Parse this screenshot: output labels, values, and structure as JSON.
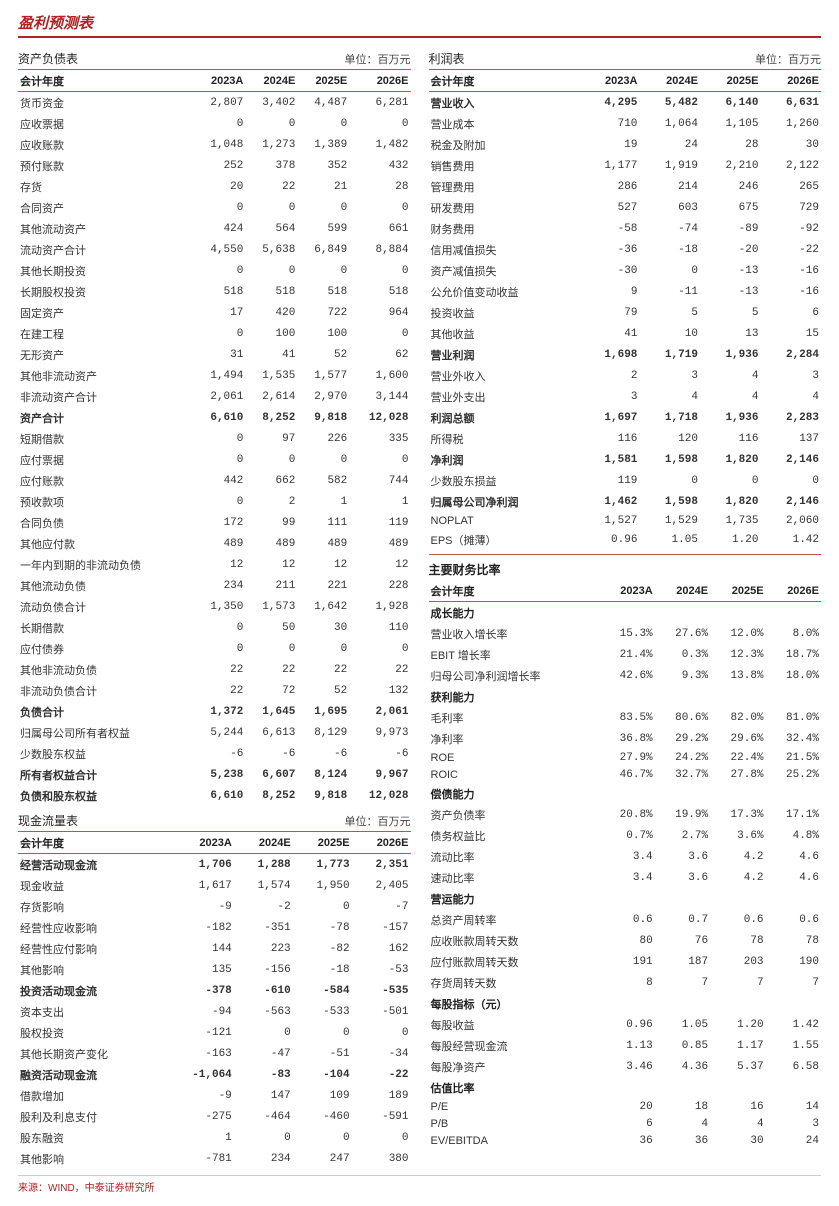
{
  "pageTitle": "盈利预测表",
  "unitLabel": "单位：百万元",
  "yearHeaders": [
    "会计年度",
    "2023A",
    "2024E",
    "2025E",
    "2026E"
  ],
  "source": "来源：WIND，中泰证券研究所",
  "balanceSheet": {
    "title": "资产负债表",
    "rows": [
      {
        "l": "货币资金",
        "v": [
          "2,807",
          "3,402",
          "4,487",
          "6,281"
        ]
      },
      {
        "l": "应收票据",
        "v": [
          "0",
          "0",
          "0",
          "0"
        ]
      },
      {
        "l": "应收账款",
        "v": [
          "1,048",
          "1,273",
          "1,389",
          "1,482"
        ]
      },
      {
        "l": "预付账款",
        "v": [
          "252",
          "378",
          "352",
          "432"
        ]
      },
      {
        "l": "存货",
        "v": [
          "20",
          "22",
          "21",
          "28"
        ]
      },
      {
        "l": "合同资产",
        "v": [
          "0",
          "0",
          "0",
          "0"
        ]
      },
      {
        "l": "其他流动资产",
        "v": [
          "424",
          "564",
          "599",
          "661"
        ]
      },
      {
        "l": "流动资产合计",
        "v": [
          "4,550",
          "5,638",
          "6,849",
          "8,884"
        ]
      },
      {
        "l": "其他长期投资",
        "v": [
          "0",
          "0",
          "0",
          "0"
        ]
      },
      {
        "l": "长期股权投资",
        "v": [
          "518",
          "518",
          "518",
          "518"
        ]
      },
      {
        "l": "固定资产",
        "v": [
          "17",
          "420",
          "722",
          "964"
        ]
      },
      {
        "l": "在建工程",
        "v": [
          "0",
          "100",
          "100",
          "0"
        ]
      },
      {
        "l": "无形资产",
        "v": [
          "31",
          "41",
          "52",
          "62"
        ]
      },
      {
        "l": "其他非流动资产",
        "v": [
          "1,494",
          "1,535",
          "1,577",
          "1,600"
        ]
      },
      {
        "l": "非流动资产合计",
        "v": [
          "2,061",
          "2,614",
          "2,970",
          "3,144"
        ]
      },
      {
        "l": "资产合计",
        "v": [
          "6,610",
          "8,252",
          "9,818",
          "12,028"
        ],
        "b": true
      },
      {
        "l": "短期借款",
        "v": [
          "0",
          "97",
          "226",
          "335"
        ]
      },
      {
        "l": "应付票据",
        "v": [
          "0",
          "0",
          "0",
          "0"
        ]
      },
      {
        "l": "应付账款",
        "v": [
          "442",
          "662",
          "582",
          "744"
        ]
      },
      {
        "l": "预收款项",
        "v": [
          "0",
          "2",
          "1",
          "1"
        ]
      },
      {
        "l": "合同负债",
        "v": [
          "172",
          "99",
          "111",
          "119"
        ]
      },
      {
        "l": "其他应付款",
        "v": [
          "489",
          "489",
          "489",
          "489"
        ]
      },
      {
        "l": "一年内到期的非流动负债",
        "v": [
          "12",
          "12",
          "12",
          "12"
        ]
      },
      {
        "l": "其他流动负债",
        "v": [
          "234",
          "211",
          "221",
          "228"
        ]
      },
      {
        "l": "流动负债合计",
        "v": [
          "1,350",
          "1,573",
          "1,642",
          "1,928"
        ]
      },
      {
        "l": "长期借款",
        "v": [
          "0",
          "50",
          "30",
          "110"
        ]
      },
      {
        "l": "应付债券",
        "v": [
          "0",
          "0",
          "0",
          "0"
        ]
      },
      {
        "l": "其他非流动负债",
        "v": [
          "22",
          "22",
          "22",
          "22"
        ]
      },
      {
        "l": "非流动负债合计",
        "v": [
          "22",
          "72",
          "52",
          "132"
        ]
      },
      {
        "l": "负债合计",
        "v": [
          "1,372",
          "1,645",
          "1,695",
          "2,061"
        ],
        "b": true
      },
      {
        "l": "归属母公司所有者权益",
        "v": [
          "5,244",
          "6,613",
          "8,129",
          "9,973"
        ]
      },
      {
        "l": "少数股东权益",
        "v": [
          "-6",
          "-6",
          "-6",
          "-6"
        ]
      },
      {
        "l": "所有者权益合计",
        "v": [
          "5,238",
          "6,607",
          "8,124",
          "9,967"
        ],
        "b": true
      },
      {
        "l": "负债和股东权益",
        "v": [
          "6,610",
          "8,252",
          "9,818",
          "12,028"
        ],
        "b": true
      }
    ]
  },
  "cashFlow": {
    "title": "现金流量表",
    "rows": [
      {
        "l": "经营活动现金流",
        "v": [
          "1,706",
          "1,288",
          "1,773",
          "2,351"
        ],
        "b": true
      },
      {
        "l": "现金收益",
        "v": [
          "1,617",
          "1,574",
          "1,950",
          "2,405"
        ]
      },
      {
        "l": "存货影响",
        "v": [
          "-9",
          "-2",
          "0",
          "-7"
        ]
      },
      {
        "l": "经营性应收影响",
        "v": [
          "-182",
          "-351",
          "-78",
          "-157"
        ]
      },
      {
        "l": "经营性应付影响",
        "v": [
          "144",
          "223",
          "-82",
          "162"
        ]
      },
      {
        "l": "其他影响",
        "v": [
          "135",
          "-156",
          "-18",
          "-53"
        ]
      },
      {
        "l": "投资活动现金流",
        "v": [
          "-378",
          "-610",
          "-584",
          "-535"
        ],
        "b": true
      },
      {
        "l": "资本支出",
        "v": [
          "-94",
          "-563",
          "-533",
          "-501"
        ]
      },
      {
        "l": "股权投资",
        "v": [
          "-121",
          "0",
          "0",
          "0"
        ]
      },
      {
        "l": "其他长期资产变化",
        "v": [
          "-163",
          "-47",
          "-51",
          "-34"
        ]
      },
      {
        "l": "融资活动现金流",
        "v": [
          "-1,064",
          "-83",
          "-104",
          "-22"
        ],
        "b": true
      },
      {
        "l": "借款增加",
        "v": [
          "-9",
          "147",
          "109",
          "189"
        ]
      },
      {
        "l": "股利及利息支付",
        "v": [
          "-275",
          "-464",
          "-460",
          "-591"
        ]
      },
      {
        "l": "股东融资",
        "v": [
          "1",
          "0",
          "0",
          "0"
        ]
      },
      {
        "l": "其他影响",
        "v": [
          "-781",
          "234",
          "247",
          "380"
        ]
      }
    ]
  },
  "incomeStatement": {
    "title": "利润表",
    "rows": [
      {
        "l": "营业收入",
        "v": [
          "4,295",
          "5,482",
          "6,140",
          "6,631"
        ],
        "b": true
      },
      {
        "l": "营业成本",
        "v": [
          "710",
          "1,064",
          "1,105",
          "1,260"
        ]
      },
      {
        "l": "税金及附加",
        "v": [
          "19",
          "24",
          "28",
          "30"
        ]
      },
      {
        "l": "销售费用",
        "v": [
          "1,177",
          "1,919",
          "2,210",
          "2,122"
        ]
      },
      {
        "l": "管理费用",
        "v": [
          "286",
          "214",
          "246",
          "265"
        ]
      },
      {
        "l": "研发费用",
        "v": [
          "527",
          "603",
          "675",
          "729"
        ]
      },
      {
        "l": "财务费用",
        "v": [
          "-58",
          "-74",
          "-89",
          "-92"
        ]
      },
      {
        "l": "信用减值损失",
        "v": [
          "-36",
          "-18",
          "-20",
          "-22"
        ]
      },
      {
        "l": "资产减值损失",
        "v": [
          "-30",
          "0",
          "-13",
          "-16"
        ]
      },
      {
        "l": "公允价值变动收益",
        "v": [
          "9",
          "-11",
          "-13",
          "-16"
        ]
      },
      {
        "l": "投资收益",
        "v": [
          "79",
          "5",
          "5",
          "6"
        ]
      },
      {
        "l": "其他收益",
        "v": [
          "41",
          "10",
          "13",
          "15"
        ]
      },
      {
        "l": "营业利润",
        "v": [
          "1,698",
          "1,719",
          "1,936",
          "2,284"
        ],
        "b": true
      },
      {
        "l": "营业外收入",
        "v": [
          "2",
          "3",
          "4",
          "3"
        ]
      },
      {
        "l": "营业外支出",
        "v": [
          "3",
          "4",
          "4",
          "4"
        ]
      },
      {
        "l": "利润总额",
        "v": [
          "1,697",
          "1,718",
          "1,936",
          "2,283"
        ],
        "b": true
      },
      {
        "l": "所得税",
        "v": [
          "116",
          "120",
          "116",
          "137"
        ]
      },
      {
        "l": "净利润",
        "v": [
          "1,581",
          "1,598",
          "1,820",
          "2,146"
        ],
        "b": true
      },
      {
        "l": "少数股东损益",
        "v": [
          "119",
          "0",
          "0",
          "0"
        ]
      },
      {
        "l": "归属母公司净利润",
        "v": [
          "1,462",
          "1,598",
          "1,820",
          "2,146"
        ],
        "b": true
      },
      {
        "l": "NOPLAT",
        "v": [
          "1,527",
          "1,529",
          "1,735",
          "2,060"
        ]
      },
      {
        "l": "EPS（摊薄）",
        "v": [
          "0.96",
          "1.05",
          "1.20",
          "1.42"
        ]
      }
    ]
  },
  "ratios": {
    "title": "主要财务比率",
    "groups": [
      {
        "name": "成长能力",
        "rows": [
          {
            "l": "营业收入增长率",
            "v": [
              "15.3%",
              "27.6%",
              "12.0%",
              "8.0%"
            ]
          },
          {
            "l": "EBIT 增长率",
            "v": [
              "21.4%",
              "0.3%",
              "12.3%",
              "18.7%"
            ]
          },
          {
            "l": "归母公司净利润增长率",
            "v": [
              "42.6%",
              "9.3%",
              "13.8%",
              "18.0%"
            ]
          }
        ]
      },
      {
        "name": "获利能力",
        "rows": [
          {
            "l": "毛利率",
            "v": [
              "83.5%",
              "80.6%",
              "82.0%",
              "81.0%"
            ]
          },
          {
            "l": "净利率",
            "v": [
              "36.8%",
              "29.2%",
              "29.6%",
              "32.4%"
            ]
          },
          {
            "l": "ROE",
            "v": [
              "27.9%",
              "24.2%",
              "22.4%",
              "21.5%"
            ]
          },
          {
            "l": "ROIC",
            "v": [
              "46.7%",
              "32.7%",
              "27.8%",
              "25.2%"
            ]
          }
        ]
      },
      {
        "name": "偿债能力",
        "rows": [
          {
            "l": "资产负债率",
            "v": [
              "20.8%",
              "19.9%",
              "17.3%",
              "17.1%"
            ]
          },
          {
            "l": "债务权益比",
            "v": [
              "0.7%",
              "2.7%",
              "3.6%",
              "4.8%"
            ]
          },
          {
            "l": "流动比率",
            "v": [
              "3.4",
              "3.6",
              "4.2",
              "4.6"
            ]
          },
          {
            "l": "速动比率",
            "v": [
              "3.4",
              "3.6",
              "4.2",
              "4.6"
            ]
          }
        ]
      },
      {
        "name": "营运能力",
        "rows": [
          {
            "l": "总资产周转率",
            "v": [
              "0.6",
              "0.7",
              "0.6",
              "0.6"
            ]
          },
          {
            "l": "应收账款周转天数",
            "v": [
              "80",
              "76",
              "78",
              "78"
            ]
          },
          {
            "l": "应付账款周转天数",
            "v": [
              "191",
              "187",
              "203",
              "190"
            ]
          },
          {
            "l": "存货周转天数",
            "v": [
              "8",
              "7",
              "7",
              "7"
            ]
          }
        ]
      },
      {
        "name": "每股指标（元）",
        "rows": [
          {
            "l": "每股收益",
            "v": [
              "0.96",
              "1.05",
              "1.20",
              "1.42"
            ]
          },
          {
            "l": "每股经营现金流",
            "v": [
              "1.13",
              "0.85",
              "1.17",
              "1.55"
            ]
          },
          {
            "l": "每股净资产",
            "v": [
              "3.46",
              "4.36",
              "5.37",
              "6.58"
            ]
          }
        ]
      },
      {
        "name": "估值比率",
        "rows": [
          {
            "l": "P/E",
            "v": [
              "20",
              "18",
              "16",
              "14"
            ]
          },
          {
            "l": "P/B",
            "v": [
              "6",
              "4",
              "4",
              "3"
            ]
          },
          {
            "l": "EV/EBITDA",
            "v": [
              "36",
              "36",
              "30",
              "24"
            ]
          }
        ]
      }
    ]
  }
}
